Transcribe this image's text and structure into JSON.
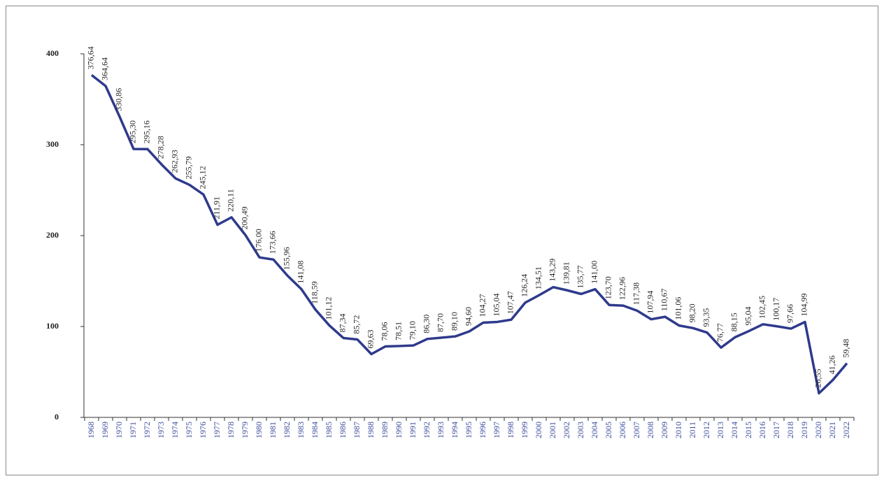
{
  "chart_data": {
    "type": "line",
    "categories": [
      "1968",
      "1969",
      "1970",
      "1971",
      "1972",
      "1973",
      "1974",
      "1975",
      "1976",
      "1977",
      "1978",
      "1979",
      "1980",
      "1981",
      "1982",
      "1983",
      "1984",
      "1985",
      "1986",
      "1987",
      "1988",
      "1989",
      "1990",
      "1991",
      "1992",
      "1993",
      "1994",
      "1995",
      "1996",
      "1997",
      "1998",
      "1999",
      "2000",
      "2001",
      "2002",
      "2003",
      "2004",
      "2005",
      "2006",
      "2007",
      "2008",
      "2009",
      "2010",
      "2011",
      "2012",
      "2013",
      "2014",
      "2015",
      "2016",
      "2017",
      "2018",
      "2019",
      "2020",
      "2021",
      "2022"
    ],
    "values": [
      376.64,
      364.64,
      330.86,
      295.3,
      295.16,
      278.28,
      262.93,
      255.79,
      245.12,
      211.91,
      220.11,
      200.49,
      176.0,
      173.66,
      155.96,
      141.08,
      118.59,
      101.12,
      87.34,
      85.72,
      69.63,
      78.06,
      78.51,
      79.1,
      86.3,
      87.7,
      89.1,
      94.6,
      104.27,
      105.04,
      107.47,
      126.24,
      134.51,
      143.29,
      139.81,
      135.77,
      141.0,
      123.7,
      122.96,
      117.38,
      107.94,
      110.67,
      101.06,
      98.2,
      93.35,
      76.77,
      88.15,
      95.04,
      102.45,
      100.17,
      97.66,
      104.99,
      26.55,
      41.26,
      59.48
    ],
    "value_labels": [
      "376,64",
      "364,64",
      "330,86",
      "295,30",
      "295,16",
      "278,28",
      "262,93",
      "255,79",
      "245,12",
      "211,91",
      "220,11",
      "200,49",
      "176,00",
      "173,66",
      "155,96",
      "141,08",
      "118,59",
      "101,12",
      "87,34",
      "85,72",
      "69,63",
      "78,06",
      "78,51",
      "79,10",
      "86,30",
      "87,70",
      "89,10",
      "94,60",
      "104,27",
      "105,04",
      "107,47",
      "126,24",
      "134,51",
      "143,29",
      "139,81",
      "135,77",
      "141,00",
      "123,70",
      "122,96",
      "117,38",
      "107,94",
      "110,67",
      "101,06",
      "98,20",
      "93,35",
      "76,77",
      "88,15",
      "95,04",
      "102,45",
      "100,17",
      "97,66",
      "104,99",
      "26,55",
      "41,26",
      "59,48"
    ],
    "color": "#2e3a8c",
    "ylim": [
      0,
      400
    ],
    "yticks": [
      0,
      100,
      200,
      300,
      400
    ],
    "grid": false
  }
}
